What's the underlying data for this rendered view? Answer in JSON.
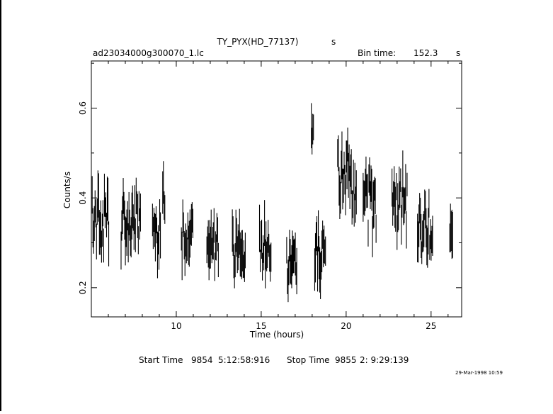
{
  "header": {
    "title": "TY_PYX(HD_77137)",
    "title_unit": "s",
    "filename": "ad23034000g300070_1.lc",
    "bin_time_label": "Bin time:",
    "bin_time_value": "152.3",
    "bin_time_unit": "s"
  },
  "footer": {
    "start_label": "Start Time",
    "start_day": "9854",
    "start_time": "5:12:58:916",
    "stop_label": "Stop Time",
    "stop_day": "9855",
    "stop_time": "2: 9:29:139",
    "timestamp": "29-Mar-1998 10:59"
  },
  "chart_data": {
    "type": "line",
    "xlabel": "Time (hours)",
    "ylabel": "Counts/s",
    "xlim": [
      5.0,
      26.8
    ],
    "ylim": [
      0.135,
      0.705
    ],
    "xticks": [
      10,
      15,
      20,
      25
    ],
    "yticks": [
      0.2,
      0.4,
      0.6
    ],
    "grid": false,
    "segments": [
      {
        "start": 5.05,
        "end": 6.05,
        "mean": 0.35,
        "amp": 0.08
      },
      {
        "start": 6.75,
        "end": 7.9,
        "mean": 0.34,
        "amp": 0.07
      },
      {
        "start": 8.6,
        "end": 9.1,
        "mean": 0.31,
        "amp": 0.06
      },
      {
        "start": 9.2,
        "end": 9.35,
        "mean": 0.41,
        "amp": 0.06
      },
      {
        "start": 10.3,
        "end": 11.0,
        "mean": 0.32,
        "amp": 0.07
      },
      {
        "start": 11.8,
        "end": 12.5,
        "mean": 0.3,
        "amp": 0.06
      },
      {
        "start": 13.3,
        "end": 14.1,
        "mean": 0.29,
        "amp": 0.06
      },
      {
        "start": 14.9,
        "end": 15.6,
        "mean": 0.3,
        "amp": 0.06
      },
      {
        "start": 16.5,
        "end": 17.1,
        "mean": 0.25,
        "amp": 0.06
      },
      {
        "start": 17.95,
        "end": 18.1,
        "mean": 0.55,
        "amp": 0.06
      },
      {
        "start": 18.15,
        "end": 18.8,
        "mean": 0.28,
        "amp": 0.06
      },
      {
        "start": 19.5,
        "end": 20.6,
        "mean": 0.44,
        "amp": 0.09
      },
      {
        "start": 21.0,
        "end": 21.8,
        "mean": 0.38,
        "amp": 0.08
      },
      {
        "start": 22.7,
        "end": 23.6,
        "mean": 0.39,
        "amp": 0.08
      },
      {
        "start": 24.2,
        "end": 25.1,
        "mean": 0.33,
        "amp": 0.07
      },
      {
        "start": 26.1,
        "end": 26.3,
        "mean": 0.3,
        "amp": 0.05
      }
    ],
    "bin_seconds": 152.3
  }
}
